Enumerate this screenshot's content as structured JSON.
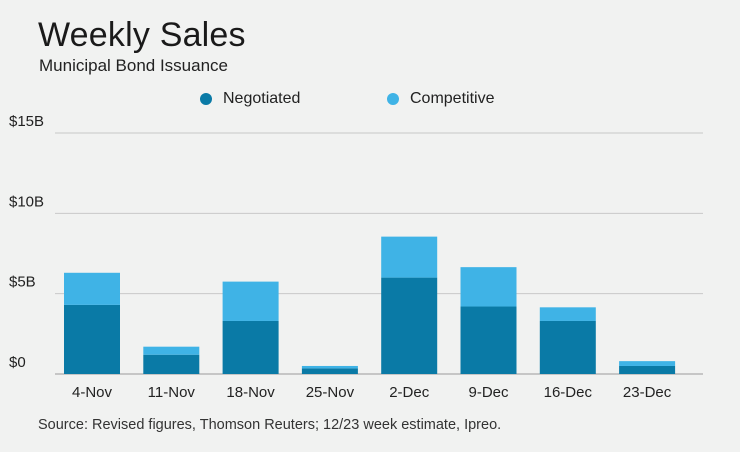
{
  "colors": {
    "negotiated": "#0a7aa6",
    "competitive": "#3fb3e6",
    "grid": "#c8c8c8",
    "background": "#f1f2f1"
  },
  "chart_data": {
    "type": "bar",
    "stacked": true,
    "title": "Weekly Sales",
    "subtitle": "Municipal Bond Issuance",
    "categories": [
      "4-Nov",
      "11-Nov",
      "18-Nov",
      "25-Nov",
      "2-Dec",
      "9-Dec",
      "16-Dec",
      "23-Dec"
    ],
    "series": [
      {
        "name": "Negotiated",
        "values": [
          4.3,
          1.2,
          3.3,
          0.35,
          6.0,
          4.2,
          3.3,
          0.5
        ]
      },
      {
        "name": "Competitive",
        "values": [
          2.0,
          0.5,
          2.45,
          0.15,
          2.55,
          2.45,
          0.85,
          0.3
        ]
      }
    ],
    "yticks": [
      "$0",
      "$5B",
      "$10B",
      "$15B"
    ],
    "ytick_values": [
      0,
      5,
      10,
      15
    ],
    "ylim": [
      0,
      15
    ],
    "grid": true,
    "legend_position": "top",
    "source": "Source: Revised figures, Thomson Reuters; 12/23 week estimate, Ipreo."
  }
}
